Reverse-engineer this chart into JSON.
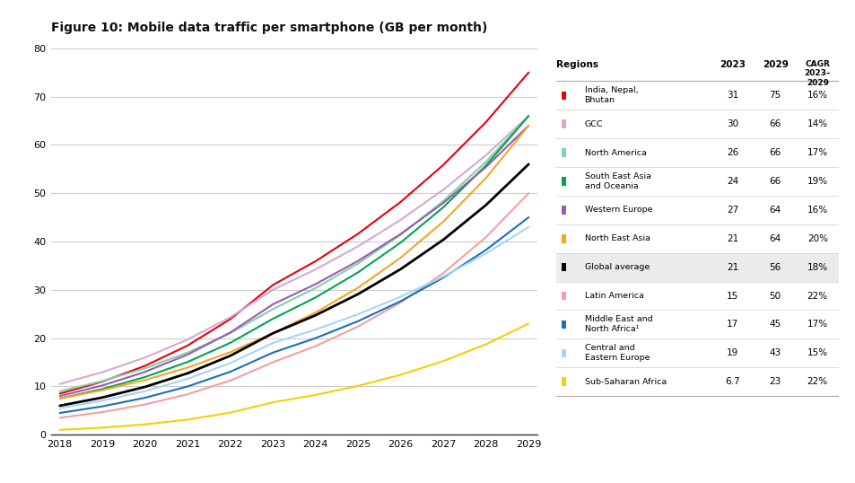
{
  "title": "Figure 10: Mobile data traffic per smartphone (GB per month)",
  "years": [
    2018,
    2019,
    2020,
    2021,
    2022,
    2023,
    2024,
    2025,
    2026,
    2027,
    2028,
    2029
  ],
  "regions": [
    {
      "name": "India, Nepal,\nBhutan",
      "color": "#e8000d",
      "val_2018": 8.5,
      "val_2023": 31,
      "val_2029": 75,
      "cagr": "16%",
      "val_2023_disp": "31",
      "val_2029_disp": "75",
      "lw": 1.5
    },
    {
      "name": "GCC",
      "color": "#d4a9d4",
      "val_2018": 10.5,
      "val_2023": 30,
      "val_2029": 66,
      "cagr": "14%",
      "val_2023_disp": "30",
      "val_2029_disp": "66",
      "lw": 1.5
    },
    {
      "name": "North America",
      "color": "#7fd4a0",
      "val_2018": 9.0,
      "val_2023": 26,
      "val_2029": 66,
      "cagr": "17%",
      "val_2023_disp": "26",
      "val_2029_disp": "66",
      "lw": 1.5
    },
    {
      "name": "South East Asia\nand Oceania",
      "color": "#00a550",
      "val_2018": 7.5,
      "val_2023": 24,
      "val_2029": 66,
      "cagr": "19%",
      "val_2023_disp": "24",
      "val_2029_disp": "66",
      "lw": 1.5
    },
    {
      "name": "Western Europe",
      "color": "#9b59b6",
      "val_2018": 8.0,
      "val_2023": 27,
      "val_2029": 64,
      "cagr": "16%",
      "val_2023_disp": "27",
      "val_2029_disp": "64",
      "lw": 1.5
    },
    {
      "name": "North East Asia",
      "color": "#f5a623",
      "val_2018": 7.5,
      "val_2023": 21,
      "val_2029": 64,
      "cagr": "20%",
      "val_2023_disp": "21",
      "val_2029_disp": "64",
      "lw": 1.5
    },
    {
      "name": "Global average",
      "color": "#000000",
      "val_2018": 6.0,
      "val_2023": 21,
      "val_2029": 56,
      "cagr": "18%",
      "val_2023_disp": "21",
      "val_2029_disp": "56",
      "lw": 2.0
    },
    {
      "name": "Latin America",
      "color": "#f4a0a0",
      "val_2018": 3.5,
      "val_2023": 15,
      "val_2029": 50,
      "cagr": "22%",
      "val_2023_disp": "15",
      "val_2029_disp": "50",
      "lw": 1.5
    },
    {
      "name": "Middle East and\nNorth Africa¹",
      "color": "#1a6fbe",
      "val_2018": 4.5,
      "val_2023": 17,
      "val_2029": 45,
      "cagr": "17%",
      "val_2023_disp": "17",
      "val_2029_disp": "45",
      "lw": 1.5
    },
    {
      "name": "Central and\nEastern Europe",
      "color": "#a8d4f5",
      "val_2018": 5.5,
      "val_2023": 19,
      "val_2029": 43,
      "cagr": "15%",
      "val_2023_disp": "19",
      "val_2029_disp": "43",
      "lw": 1.5
    },
    {
      "name": "Sub-Saharan Africa",
      "color": "#f5d000",
      "val_2018": 1.0,
      "val_2023": 6.7,
      "val_2029": 23,
      "cagr": "22%",
      "val_2023_disp": "6.7",
      "val_2029_disp": "23",
      "lw": 1.5
    }
  ],
  "table_header": [
    "Regions",
    "2023",
    "2029",
    "CAGR\n2023-\n2029"
  ],
  "ylim": [
    0,
    80
  ],
  "yticks": [
    0,
    10,
    20,
    30,
    40,
    50,
    60,
    70,
    80
  ],
  "xlim": [
    2018,
    2029
  ],
  "xticks": [
    2018,
    2019,
    2020,
    2021,
    2022,
    2023,
    2024,
    2025,
    2026,
    2027,
    2028,
    2029
  ],
  "background_color": "#ffffff",
  "global_avg_row_bg": "#e8e8e8"
}
